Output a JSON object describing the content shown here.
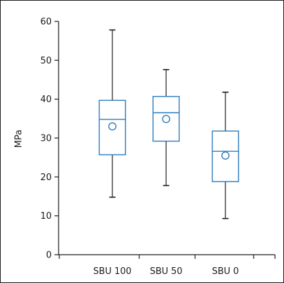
{
  "chart_data": {
    "type": "box",
    "ylabel": "MPa",
    "ylim": [
      0,
      60
    ],
    "yticks": [
      0,
      10,
      20,
      30,
      40,
      50,
      60
    ],
    "categories": [
      "SBU 100",
      "SBU 50",
      "SBU 0"
    ],
    "boxes": [
      {
        "category": "SBU 100",
        "min": 14.8,
        "q1": 25.7,
        "median": 34.8,
        "q3": 39.7,
        "max": 57.8,
        "mean": 33.0
      },
      {
        "category": "SBU 50",
        "min": 17.8,
        "q1": 29.2,
        "median": 36.5,
        "q3": 40.7,
        "max": 47.6,
        "mean": 34.9
      },
      {
        "category": "SBU 0",
        "min": 9.3,
        "q1": 18.8,
        "median": 26.6,
        "q3": 31.8,
        "max": 41.8,
        "mean": 25.5
      }
    ],
    "grid": false,
    "colors": {
      "box": "#2b7bbf",
      "whisker": "#1a1a1a",
      "axis": "#1a1a1a"
    }
  }
}
